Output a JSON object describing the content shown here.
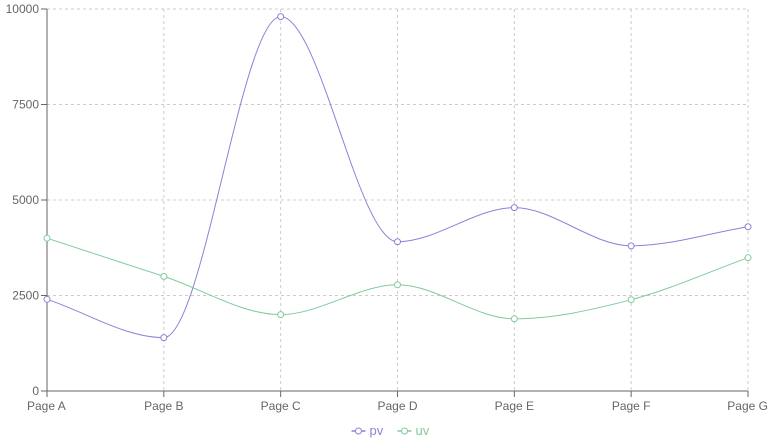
{
  "chart_data": {
    "type": "line",
    "categories": [
      "Page A",
      "Page B",
      "Page C",
      "Page D",
      "Page E",
      "Page F",
      "Page G"
    ],
    "series": [
      {
        "name": "pv",
        "color": "#8884d8",
        "values": [
          2400,
          1398,
          9800,
          3908,
          4800,
          3800,
          4300
        ]
      },
      {
        "name": "uv",
        "color": "#82ca9d",
        "values": [
          4000,
          3000,
          2000,
          2780,
          1890,
          2390,
          3490
        ]
      }
    ],
    "y_ticks": [
      "0",
      "2500",
      "5000",
      "7500",
      "10000"
    ],
    "ylim": [
      0,
      10000
    ],
    "grid": true,
    "grid_style": "dashed",
    "curve": "smooth",
    "legend_position": "bottom-center",
    "axis_color": "#666666",
    "grid_color": "#cccccc"
  }
}
